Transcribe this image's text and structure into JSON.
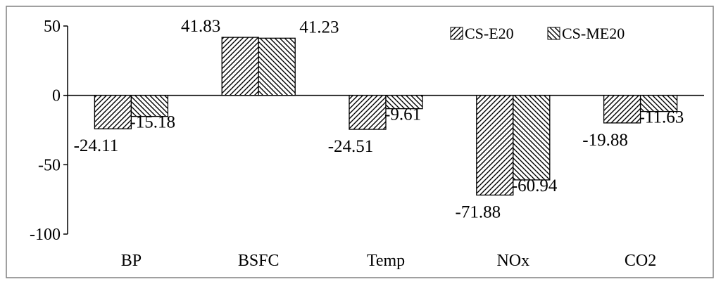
{
  "chart_data": {
    "type": "bar",
    "categories": [
      "BP",
      "BSFC",
      "Temp",
      "NOx",
      "CO2"
    ],
    "series": [
      {
        "name": "CS-E20",
        "values": [
          -24.11,
          41.83,
          -24.51,
          -71.88,
          -19.88
        ]
      },
      {
        "name": "CS-ME20",
        "values": [
          -15.18,
          41.23,
          -9.61,
          -60.94,
          -11.63
        ]
      }
    ],
    "data_labels": [
      [
        "-24.11",
        "41.83",
        "-24.51",
        "-71.88",
        "-19.88"
      ],
      [
        "-15.18",
        "41.23",
        "-9.61",
        "-60.94",
        "-11.63"
      ]
    ],
    "yticks": [
      50,
      0,
      -50,
      -100
    ],
    "ylim": [
      -100,
      50
    ],
    "grid": false,
    "legend_position": "top-right",
    "title": "",
    "xlabel": "",
    "ylabel": ""
  }
}
